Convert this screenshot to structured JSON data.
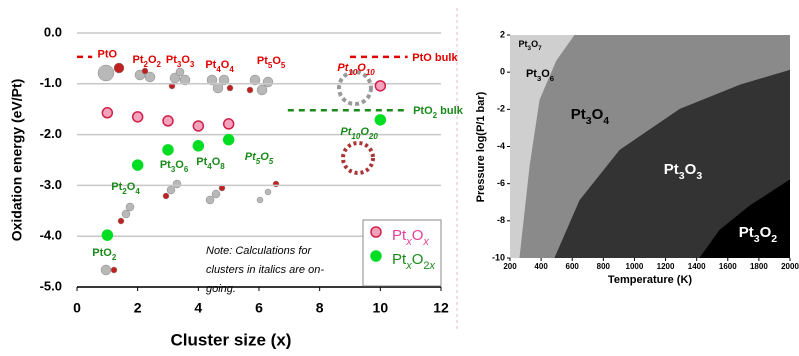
{
  "chart_data": [
    {
      "type": "scatter",
      "y_label": "Oxidation energy (eV/Pt)",
      "x_label": "Cluster size (x)",
      "xlim": [
        0,
        12
      ],
      "xticks": [
        0,
        2,
        4,
        6,
        8,
        10,
        12
      ],
      "ylim": [
        -5,
        0
      ],
      "yticks": [
        {
          "value": 0,
          "label": "0.0"
        },
        {
          "value": -1,
          "label": "-1.0"
        },
        {
          "value": -2,
          "label": "-2.0"
        },
        {
          "value": -3,
          "label": "-3.0"
        },
        {
          "value": -4,
          "label": "-4.0"
        },
        {
          "value": -5,
          "label": "-5.0"
        }
      ],
      "grid": true,
      "series": [
        {
          "name": "PtxOx",
          "color": "#f5a3bd",
          "edge_color": "#d0204a",
          "text_color": "#e0409a",
          "x": [
            1,
            2,
            3,
            4,
            5,
            10
          ],
          "values": [
            -1.57,
            -1.65,
            -1.73,
            -1.83,
            -1.79,
            -1.04
          ]
        },
        {
          "name": "PtxO2x",
          "color": "#00dd22",
          "edge_color": "#00dd22",
          "text_color": "#1a8a1a",
          "x": [
            1,
            2,
            3,
            4,
            5,
            10
          ],
          "values": [
            -3.98,
            -2.6,
            -2.3,
            -2.22,
            -2.1,
            -1.71
          ]
        }
      ],
      "reference_lines": [
        {
          "label": "PtO bulk",
          "value": -0.47,
          "color": "#e00000",
          "segments": [
            [
              0,
              0.5
            ],
            [
              9,
              10.9
            ]
          ],
          "label_x": 11.8
        },
        {
          "label": "PtO2 bulk",
          "value": -1.52,
          "color": "#1a8a1a",
          "segments": [
            [
              6.95,
              10.9
            ]
          ],
          "label_x": 11.9
        }
      ],
      "annotations": [
        {
          "text": "PtO",
          "x": 1.0,
          "y": -0.42,
          "color": "#e00000",
          "italic": false
        },
        {
          "text": "Pt2O2",
          "x": 2.3,
          "y": -0.53,
          "color": "#e00000",
          "italic": false
        },
        {
          "text": "Pt3O3",
          "x": 3.4,
          "y": -0.53,
          "color": "#e00000",
          "italic": false
        },
        {
          "text": "Pt4O4",
          "x": 4.7,
          "y": -0.63,
          "color": "#e00000",
          "italic": false
        },
        {
          "text": "Pt5O5",
          "x": 6.4,
          "y": -0.55,
          "color": "#e00000",
          "italic": false
        },
        {
          "text": "Pt10O10",
          "x": 9.2,
          "y": -0.69,
          "color": "#e00000",
          "italic": true
        },
        {
          "text": "Pt10O20",
          "x": 9.3,
          "y": -1.95,
          "color": "#1a8a1a",
          "italic": true
        },
        {
          "text": "Pt5O5",
          "x": 6.0,
          "y": -2.44,
          "color": "#1a8a1a",
          "italic": true
        },
        {
          "text": "Pt4O8",
          "x": 4.4,
          "y": -2.54,
          "color": "#1a8a1a",
          "italic": false
        },
        {
          "text": "Pt3O6",
          "x": 3.2,
          "y": -2.6,
          "color": "#1a8a1a",
          "italic": false
        },
        {
          "text": "Pt2O4",
          "x": 1.6,
          "y": -3.03,
          "color": "#1a8a1a",
          "italic": false
        },
        {
          "text": "PtO2",
          "x": 0.9,
          "y": -4.33,
          "color": "#1a8a1a",
          "italic": false
        }
      ],
      "note_lines": [
        "Note: Calculations for",
        "clusters in italics are on-",
        "going."
      ]
    },
    {
      "type": "phase_diagram",
      "x_label": "Temperature (K)",
      "y_label": "Pressure log(P/1 bar)",
      "xlim": [
        200,
        2000
      ],
      "xticks": [
        200,
        400,
        600,
        800,
        1000,
        1200,
        1400,
        1600,
        1800,
        2000
      ],
      "ylim": [
        -10,
        2
      ],
      "yticks": [
        -10,
        -8,
        -6,
        -4,
        -2,
        0,
        2
      ],
      "phases": [
        {
          "name": "Pt3O7",
          "label_x": 329,
          "label_y": 1.46,
          "label_color": "#000000"
        },
        {
          "name": "Pt3O6",
          "color": "#cfcfcf",
          "label_x": 393,
          "label_y": -0.1,
          "label_color": "#000000"
        },
        {
          "name": "Pt3O4",
          "color": "#8a8a8a",
          "label_x": 714,
          "label_y": -2.3,
          "label_color": "#000000",
          "boundary": {
            "x": [
              264,
              330,
              393,
              500,
              618
            ],
            "y": [
              -10,
              -5,
              -1.5,
              0.6,
              2
            ]
          }
        },
        {
          "name": "Pt3O3",
          "color": "#333333",
          "label_x": 1312,
          "label_y": -5.26,
          "label_color": "#ffffff",
          "boundary": {
            "x": [
              489,
              650,
              907,
              1293,
              1678,
              2000
            ],
            "y": [
              -10,
              -6.9,
              -4.2,
              -2.0,
              -0.7,
              0.1
            ]
          }
        },
        {
          "name": "Pt3O2",
          "color": "#000000",
          "label_x": 1794,
          "label_y": -8.65,
          "label_color": "#ffffff",
          "boundary": {
            "x": [
              1421,
              1550,
              1743,
              2000
            ],
            "y": [
              -10,
              -8.5,
              -7.2,
              -5.8
            ]
          }
        }
      ]
    }
  ]
}
